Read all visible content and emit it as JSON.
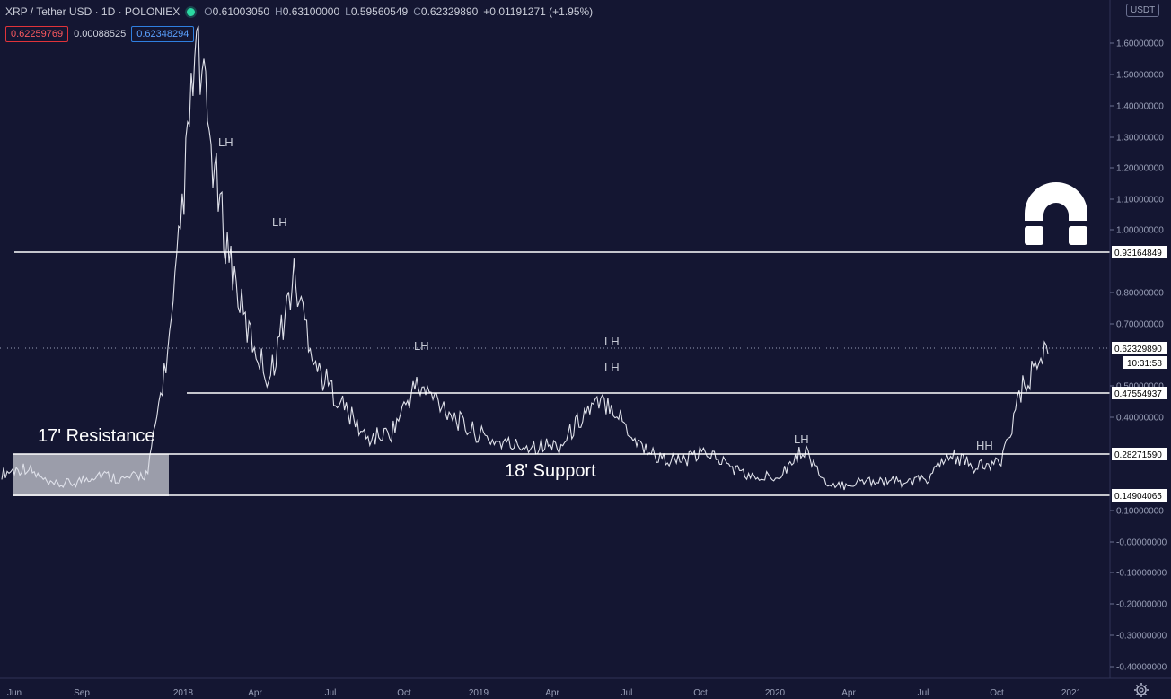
{
  "header": {
    "symbol": "XRP / Tether USD · 1D · POLONIEX",
    "o_label": "O",
    "o_value": "0.61003050",
    "h_label": "H",
    "h_value": "0.63100000",
    "l_label": "L",
    "l_value": "0.59560549",
    "c_label": "C",
    "c_value": "0.62329890",
    "change": "+0.01191271 (+1.95%)",
    "sell_price": "0.62259769",
    "spread": "0.00088525",
    "buy_price": "0.62348294",
    "currency": "USDT",
    "countdown": "10:31:58"
  },
  "chart_data": {
    "type": "line",
    "title": "",
    "xlabel": "",
    "ylabel": "",
    "y_scale": "log",
    "ylim": [
      -0.4,
      1.7
    ],
    "y_ticks": [
      "1.60000000",
      "1.50000000",
      "1.40000000",
      "1.30000000",
      "1.20000000",
      "1.10000000",
      "1.00000000",
      "0.80000000",
      "0.70000000",
      "0.50000000",
      "0.40000000",
      "0.10000000",
      "-0.00000000",
      "-0.10000000",
      "-0.20000000",
      "-0.30000000",
      "-0.40000000"
    ],
    "x_ticks": [
      "Jun",
      "Sep",
      "2018",
      "Apr",
      "Jul",
      "Oct",
      "2019",
      "Apr",
      "Jul",
      "Oct",
      "2020",
      "Apr",
      "Jul",
      "Oct",
      "2021"
    ],
    "series": [
      {
        "x": [
          "2017-05",
          "2017-06",
          "2017-07",
          "2017-08",
          "2017-09",
          "2017-10",
          "2017-11",
          "2017-12",
          "2018-01",
          "2018-02",
          "2018-03",
          "2018-04",
          "2018-05",
          "2018-06",
          "2018-07",
          "2018-08",
          "2018-09",
          "2018-10",
          "2018-11",
          "2018-12",
          "2019-01",
          "2019-02",
          "2019-03",
          "2019-04",
          "2019-05",
          "2019-06",
          "2019-07",
          "2019-08",
          "2019-09",
          "2019-10",
          "2019-11",
          "2019-12",
          "2020-01",
          "2020-02",
          "2020-03",
          "2020-04",
          "2020-05",
          "2020-06",
          "2020-07",
          "2020-08",
          "2020-09",
          "2020-10",
          "2020-11",
          "2020-12"
        ],
        "values": [
          0.22,
          0.24,
          0.18,
          0.19,
          0.22,
          0.2,
          0.22,
          0.7,
          1.6,
          1.05,
          0.7,
          0.52,
          0.85,
          0.55,
          0.44,
          0.33,
          0.35,
          0.5,
          0.45,
          0.37,
          0.33,
          0.31,
          0.31,
          0.31,
          0.42,
          0.45,
          0.33,
          0.27,
          0.26,
          0.29,
          0.24,
          0.2,
          0.22,
          0.3,
          0.17,
          0.19,
          0.2,
          0.19,
          0.2,
          0.28,
          0.24,
          0.25,
          0.5,
          0.62
        ]
      }
    ],
    "horizontal_levels": [
      "0.93164849",
      "0.62329890",
      "0.47554937",
      "0.28271590",
      "0.14904065"
    ],
    "annotations": [
      "LH",
      "LH",
      "LH",
      "LH",
      "LH",
      "LH",
      "HH",
      "17' Resistance",
      "18' Support"
    ],
    "grid": false,
    "legend": "none"
  },
  "colors": {
    "background": "#141632",
    "price_line": "#dfe1ea",
    "level_line": "#ffffff",
    "resistance_zone": "#b3b5bf",
    "sell_box": "#e0333a",
    "buy_box": "#2f7fe0"
  },
  "icons": {
    "logo": "horseshoe-logo-icon",
    "settings": "gear-icon"
  }
}
